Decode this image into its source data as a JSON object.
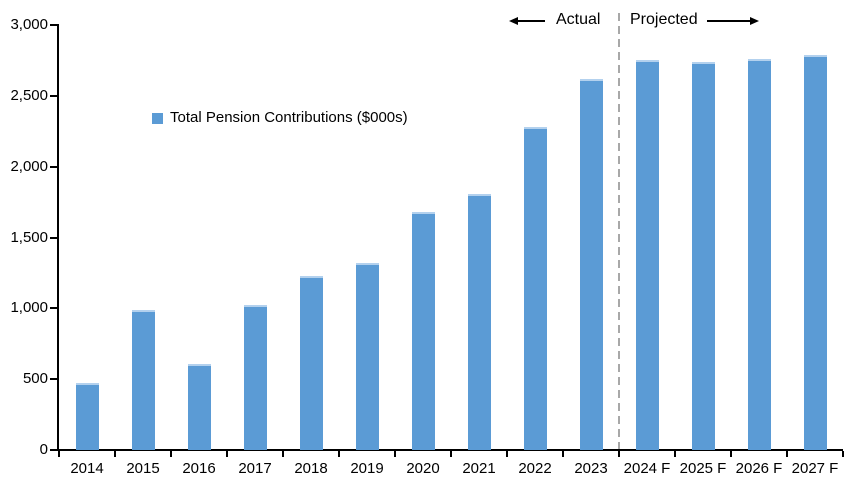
{
  "chart_data": {
    "type": "bar",
    "title": "",
    "legend": "Total Pension Contributions ($000s)",
    "categories": [
      "2014",
      "2015",
      "2016",
      "2017",
      "2018",
      "2019",
      "2020",
      "2021",
      "2022",
      "2023",
      "2024 F",
      "2025 F",
      "2026 F",
      "2027 F"
    ],
    "values": [
      470,
      990,
      610,
      1020,
      1230,
      1320,
      1680,
      1810,
      2280,
      2620,
      2750,
      2740,
      2760,
      2790
    ],
    "xlabel": "",
    "ylabel": "",
    "ylim": [
      0,
      3000
    ],
    "y_ticks": [
      0,
      500,
      1000,
      1500,
      2000,
      2500,
      3000
    ],
    "y_tick_labels": [
      "0",
      "500",
      "1,000",
      "1,500",
      "2,000",
      "2,500",
      "3,000"
    ],
    "grid": false,
    "legend_position": "inside-upper-left",
    "bar_color": "#5B9BD5",
    "divider_color": "#A8A8A8",
    "divider_after_index": 9,
    "annotations": {
      "actual_label": "Actual",
      "projected_label": "Projected"
    }
  }
}
